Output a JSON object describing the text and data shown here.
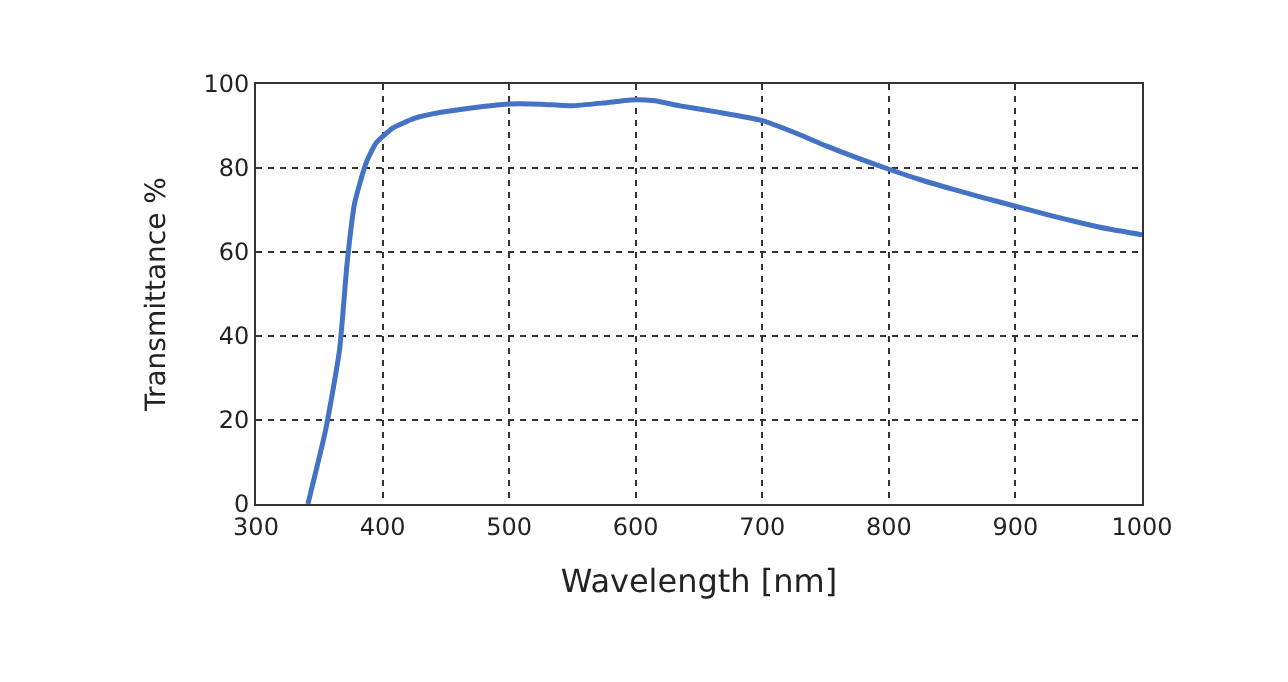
{
  "chart_data": {
    "type": "line",
    "xlabel": "Wavelength [nm]",
    "ylabel": "Transmittance %",
    "x": [
      341,
      355,
      366,
      372,
      378,
      387,
      395,
      408,
      425,
      445,
      470,
      497,
      525,
      549,
      575,
      596,
      615,
      635,
      665,
      700,
      725,
      751,
      775,
      800,
      825,
      851,
      875,
      900,
      925,
      952,
      975,
      1000
    ],
    "series": [
      {
        "color": "#4472c4",
        "values": [
          0,
          17.6,
          36.7,
          57.4,
          71.7,
          81.2,
          86,
          89.5,
          91.8,
          93.2,
          94.3,
          95.2,
          95.2,
          94.8,
          95.5,
          96.2,
          96,
          94.8,
          93.3,
          91.3,
          88.5,
          85.2,
          82.4,
          79.7,
          77.2,
          74.9,
          72.9,
          70.9,
          68.9,
          66.9,
          65.4,
          64.1
        ]
      }
    ],
    "xlim": [
      300,
      1000
    ],
    "xticks": [
      300,
      400,
      500,
      600,
      700,
      800,
      900,
      1000
    ],
    "ylim": [
      0,
      100
    ],
    "yticks": [
      0,
      20,
      40,
      60,
      80,
      100
    ],
    "grid": true,
    "marker": "none",
    "line_style": "solid"
  }
}
